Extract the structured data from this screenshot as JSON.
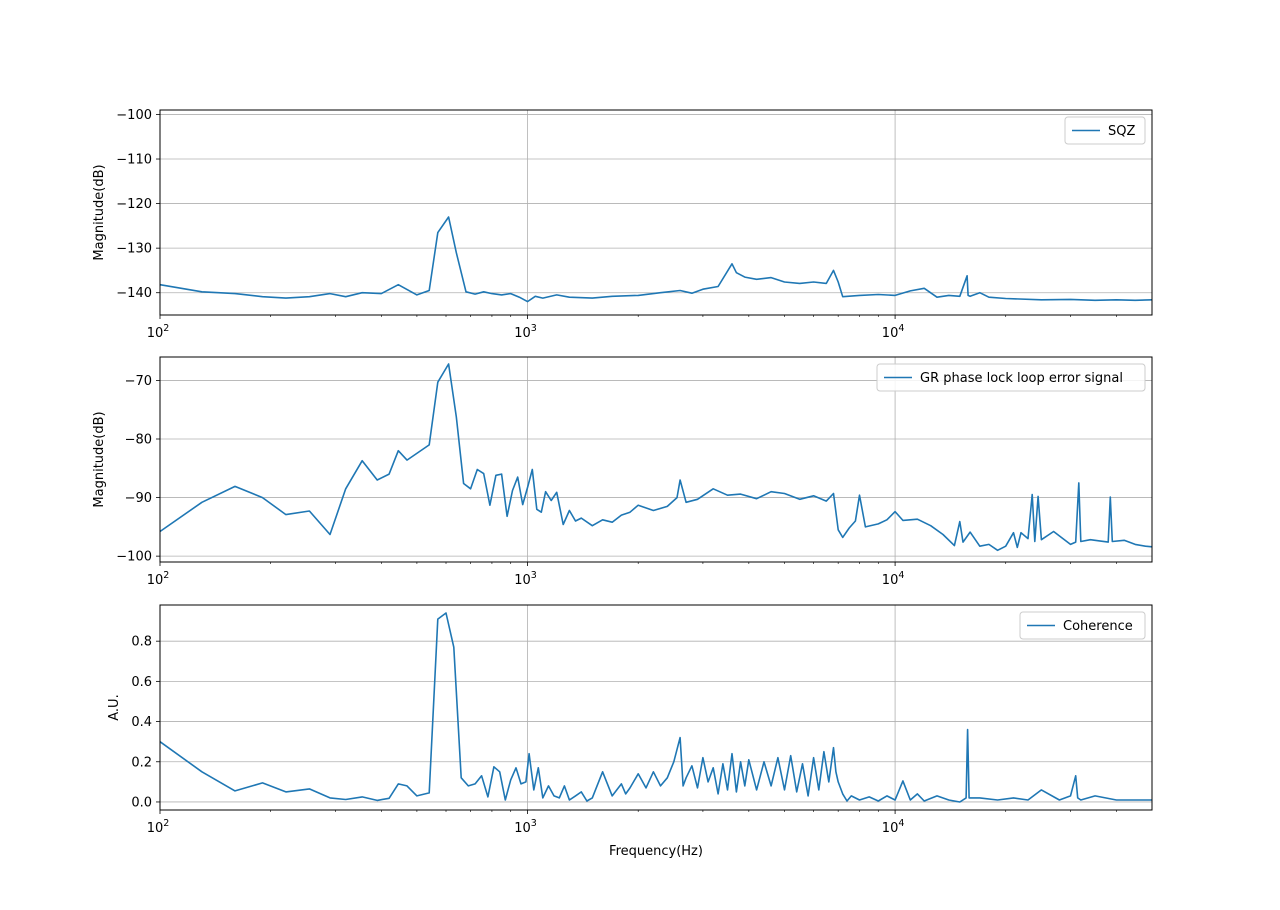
{
  "colors": {
    "series": "#1f77b4",
    "grid": "#b0b0b0",
    "axes": "#000000"
  },
  "chart_data": [
    {
      "type": "line",
      "xscale": "log",
      "xlim": [
        100,
        50000
      ],
      "ylim": [
        -145,
        -99
      ],
      "ylabel": "Magnitude(dB)",
      "xlabel": "",
      "grid": true,
      "legend_position": "upper right",
      "y_ticks": [
        -100,
        -110,
        -120,
        -130,
        -140
      ],
      "y_tick_labels": [
        "−100",
        "−110",
        "−120",
        "−130",
        "−140"
      ],
      "x_ticks": [
        100,
        1000,
        10000
      ],
      "x_tick_labels": [
        "10^2",
        "10^3",
        "10^4"
      ],
      "series": [
        {
          "name": "SQZ",
          "x": [
            100,
            130,
            160,
            190,
            220,
            255,
            290,
            320,
            355,
            400,
            445,
            500,
            540,
            570,
            610,
            640,
            680,
            720,
            760,
            800,
            850,
            900,
            950,
            1000,
            1050,
            1100,
            1200,
            1300,
            1500,
            1700,
            2000,
            2300,
            2600,
            2800,
            3000,
            3300,
            3600,
            3700,
            3900,
            4200,
            4600,
            5000,
            5500,
            6000,
            6500,
            6800,
            7000,
            7200,
            8000,
            9000,
            10000,
            11000,
            12000,
            13000,
            14000,
            15000,
            15700,
            15800,
            16000,
            17000,
            18000,
            20000,
            25000,
            30000,
            35000,
            40000,
            45000,
            50000
          ],
          "y": [
            -138.2,
            -139.8,
            -140.2,
            -140.9,
            -141.2,
            -140.9,
            -140.2,
            -140.9,
            -140.0,
            -140.2,
            -138.2,
            -140.5,
            -139.5,
            -126.5,
            -123.0,
            -131.0,
            -139.8,
            -140.3,
            -139.8,
            -140.2,
            -140.5,
            -140.2,
            -141.0,
            -142.0,
            -140.8,
            -141.2,
            -140.5,
            -141.0,
            -141.2,
            -140.8,
            -140.6,
            -140.0,
            -139.5,
            -140.1,
            -139.2,
            -138.6,
            -133.5,
            -135.5,
            -136.5,
            -137.0,
            -136.6,
            -137.6,
            -137.9,
            -137.6,
            -137.9,
            -135.0,
            -137.6,
            -140.9,
            -140.6,
            -140.4,
            -140.6,
            -139.6,
            -139.0,
            -141.0,
            -140.6,
            -140.8,
            -136.2,
            -140.6,
            -140.8,
            -140.0,
            -141.0,
            -141.3,
            -141.6,
            -141.5,
            -141.7,
            -141.6,
            -141.7,
            -141.6
          ]
        }
      ]
    },
    {
      "type": "line",
      "xscale": "log",
      "xlim": [
        100,
        50000
      ],
      "ylim": [
        -101,
        -66
      ],
      "ylabel": "Magnitude(dB)",
      "xlabel": "",
      "grid": true,
      "legend_position": "upper right",
      "y_ticks": [
        -70,
        -80,
        -90,
        -100
      ],
      "y_tick_labels": [
        "−70",
        "−80",
        "−90",
        "−100"
      ],
      "x_ticks": [
        100,
        1000,
        10000
      ],
      "x_tick_labels": [
        "10^2",
        "10^3",
        "10^4"
      ],
      "series": [
        {
          "name": "GR phase lock loop error signal",
          "x": [
            100,
            130,
            160,
            190,
            220,
            255,
            290,
            320,
            355,
            390,
            420,
            445,
            470,
            540,
            570,
            610,
            640,
            670,
            700,
            730,
            760,
            790,
            820,
            850,
            880,
            910,
            940,
            970,
            1000,
            1030,
            1060,
            1090,
            1120,
            1160,
            1200,
            1250,
            1300,
            1350,
            1400,
            1500,
            1600,
            1700,
            1800,
            1900,
            2000,
            2200,
            2400,
            2550,
            2600,
            2700,
            2900,
            3200,
            3500,
            3800,
            4200,
            4600,
            5000,
            5500,
            6000,
            6500,
            6800,
            7000,
            7200,
            7500,
            7800,
            8000,
            8300,
            9000,
            9500,
            10000,
            10500,
            11500,
            12500,
            13500,
            14500,
            15000,
            15300,
            16000,
            17000,
            18000,
            19000,
            20000,
            21000,
            21500,
            22000,
            23000,
            23600,
            24000,
            24500,
            25000,
            27000,
            30000,
            31000,
            31600,
            32000,
            34000,
            36000,
            38000,
            38500,
            39000,
            42000,
            45000,
            48000,
            50000
          ],
          "y": [
            -95.8,
            -90.8,
            -88.1,
            -90.0,
            -92.9,
            -92.3,
            -96.3,
            -88.5,
            -83.7,
            -87.0,
            -86.0,
            -82.0,
            -83.6,
            -81.0,
            -70.3,
            -67.2,
            -76.2,
            -87.6,
            -88.5,
            -85.2,
            -85.9,
            -91.3,
            -86.2,
            -86.0,
            -93.2,
            -88.8,
            -86.5,
            -91.2,
            -88.3,
            -85.2,
            -92.0,
            -92.5,
            -89.0,
            -90.5,
            -89.1,
            -94.6,
            -92.2,
            -94.0,
            -93.5,
            -94.8,
            -93.8,
            -94.2,
            -93.0,
            -92.5,
            -91.3,
            -92.2,
            -91.5,
            -90.0,
            -87.0,
            -90.8,
            -90.3,
            -88.5,
            -89.6,
            -89.4,
            -90.2,
            -89.0,
            -89.3,
            -90.3,
            -89.7,
            -90.6,
            -89.3,
            -95.5,
            -96.8,
            -95.2,
            -94.0,
            -89.6,
            -95.0,
            -94.5,
            -93.8,
            -92.4,
            -93.9,
            -93.7,
            -94.8,
            -96.3,
            -98.2,
            -94.1,
            -97.6,
            -95.9,
            -98.3,
            -98.0,
            -99.0,
            -98.3,
            -96.0,
            -98.5,
            -96.0,
            -97.0,
            -89.5,
            -97.5,
            -89.8,
            -97.2,
            -95.8,
            -98.0,
            -97.6,
            -87.5,
            -97.5,
            -97.2,
            -97.4,
            -97.6,
            -89.9,
            -97.5,
            -97.3,
            -98.0,
            -98.3,
            -98.4
          ]
        }
      ]
    },
    {
      "type": "line",
      "xscale": "log",
      "xlim": [
        100,
        50000
      ],
      "ylim": [
        -0.04,
        0.98
      ],
      "ylabel": "A.U.",
      "xlabel": "Frequency(Hz)",
      "grid": true,
      "legend_position": "upper right",
      "y_ticks": [
        0.0,
        0.2,
        0.4,
        0.6,
        0.8
      ],
      "y_tick_labels": [
        "0.0",
        "0.2",
        "0.4",
        "0.6",
        "0.8"
      ],
      "x_ticks": [
        100,
        1000,
        10000
      ],
      "x_tick_labels": [
        "10^2",
        "10^3",
        "10^4"
      ],
      "series": [
        {
          "name": "Coherence",
          "x": [
            100,
            130,
            160,
            190,
            220,
            255,
            290,
            320,
            355,
            390,
            420,
            445,
            470,
            500,
            540,
            570,
            600,
            630,
            660,
            690,
            720,
            750,
            780,
            810,
            840,
            870,
            900,
            930,
            960,
            990,
            1010,
            1040,
            1070,
            1100,
            1140,
            1180,
            1220,
            1260,
            1300,
            1350,
            1400,
            1450,
            1500,
            1600,
            1700,
            1800,
            1850,
            1900,
            2000,
            2100,
            2200,
            2300,
            2400,
            2500,
            2600,
            2650,
            2700,
            2800,
            2900,
            3000,
            3100,
            3200,
            3300,
            3400,
            3500,
            3600,
            3700,
            3800,
            3900,
            4000,
            4200,
            4400,
            4600,
            4800,
            5000,
            5200,
            5400,
            5600,
            5800,
            6000,
            6200,
            6400,
            6600,
            6800,
            6900,
            7000,
            7200,
            7400,
            7600,
            8000,
            8500,
            9000,
            9500,
            10000,
            10500,
            11000,
            11500,
            12000,
            13000,
            14000,
            15000,
            15600,
            15750,
            15900,
            17000,
            19000,
            21000,
            23000,
            25000,
            28000,
            30000,
            31000,
            31400,
            32000,
            35000,
            40000,
            45000,
            50000
          ],
          "y": [
            0.3,
            0.15,
            0.055,
            0.095,
            0.05,
            0.065,
            0.02,
            0.012,
            0.025,
            0.008,
            0.018,
            0.09,
            0.08,
            0.03,
            0.045,
            0.91,
            0.94,
            0.77,
            0.12,
            0.08,
            0.09,
            0.13,
            0.025,
            0.175,
            0.15,
            0.01,
            0.11,
            0.17,
            0.09,
            0.1,
            0.24,
            0.06,
            0.17,
            0.02,
            0.08,
            0.03,
            0.02,
            0.08,
            0.01,
            0.03,
            0.05,
            0.005,
            0.02,
            0.15,
            0.03,
            0.09,
            0.04,
            0.07,
            0.14,
            0.07,
            0.15,
            0.08,
            0.12,
            0.2,
            0.32,
            0.08,
            0.12,
            0.18,
            0.07,
            0.22,
            0.1,
            0.17,
            0.04,
            0.19,
            0.06,
            0.24,
            0.05,
            0.2,
            0.08,
            0.21,
            0.06,
            0.2,
            0.08,
            0.22,
            0.06,
            0.23,
            0.05,
            0.19,
            0.03,
            0.22,
            0.06,
            0.25,
            0.1,
            0.27,
            0.15,
            0.1,
            0.04,
            0.005,
            0.03,
            0.01,
            0.025,
            0.005,
            0.03,
            0.01,
            0.105,
            0.01,
            0.04,
            0.005,
            0.03,
            0.01,
            0.0,
            0.02,
            0.36,
            0.02,
            0.02,
            0.01,
            0.02,
            0.01,
            0.06,
            0.01,
            0.03,
            0.13,
            0.02,
            0.01,
            0.03,
            0.01,
            0.01,
            0.01
          ]
        }
      ]
    }
  ]
}
